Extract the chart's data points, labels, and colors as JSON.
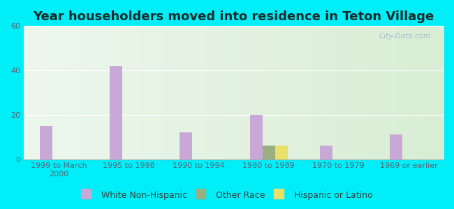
{
  "title": "Year householders moved into residence in Teton Village",
  "categories": [
    "1999 to March\n2000",
    "1995 to 1998",
    "1990 to 1994",
    "1980 to 1989",
    "1970 to 1979",
    "1969 or earlier"
  ],
  "white_non_hispanic": [
    15,
    42,
    12,
    20,
    6,
    11
  ],
  "other_race": [
    0,
    0,
    0,
    6,
    0,
    0
  ],
  "hispanic_or_latino": [
    0,
    0,
    0,
    6,
    0,
    0
  ],
  "white_color": "#c9a8d8",
  "other_race_color": "#9aaf80",
  "hispanic_color": "#e8e068",
  "ylim": [
    0,
    60
  ],
  "yticks": [
    0,
    20,
    40,
    60
  ],
  "background_outer": "#00eef8",
  "watermark": "City-Data.com",
  "bar_width": 0.18,
  "title_fontsize": 13,
  "tick_label_fontsize": 8,
  "legend_fontsize": 9
}
